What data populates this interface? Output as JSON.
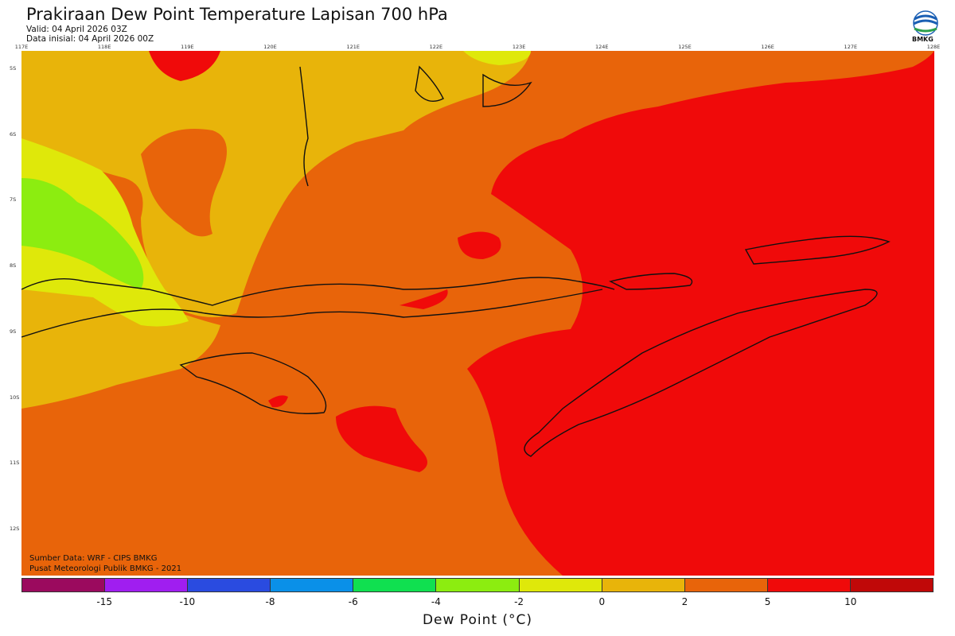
{
  "header": {
    "title": "Prakiraan Dew Point Temperature Lapisan 700 hPa",
    "valid": "Valid: 04 April 2026 03Z",
    "initial": "Data inisial: 04 April 2026 00Z"
  },
  "logo": {
    "label": "BMKG",
    "icon": "bmkg-logo-icon"
  },
  "map": {
    "lon_labels": [
      "117E",
      "118E",
      "119E",
      "120E",
      "121E",
      "122E",
      "123E",
      "124E",
      "125E",
      "126E",
      "127E",
      "128E"
    ],
    "lat_labels": [
      "5S",
      "6S",
      "7S",
      "8S",
      "9S",
      "10S",
      "11S",
      "12S"
    ]
  },
  "credits": {
    "source": "Sumber Data: WRF - CIPS BMKG",
    "center": "Pusat Meteorologi Publik BMKG - 2021"
  },
  "colorbar": {
    "colors": [
      "#9b0a5e",
      "#a01ef0",
      "#2a4be0",
      "#0a90e8",
      "#10e050",
      "#8ced10",
      "#dfe80a",
      "#e8b40a",
      "#e8640a",
      "#f00a0a",
      "#c00808"
    ],
    "ticks": [
      "-15",
      "-10",
      "-8",
      "-6",
      "-4",
      "-2",
      "0",
      "2",
      "5",
      "10"
    ],
    "title": "Dew Point (°C)"
  }
}
